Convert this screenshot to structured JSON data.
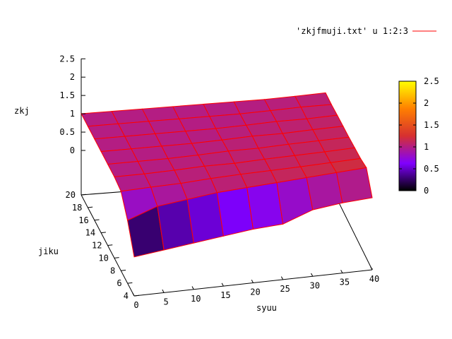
{
  "chart_data": {
    "type": "surface",
    "title": "",
    "legend": {
      "label": "'zkjfmuji.txt' u 1:2:3",
      "color": "#ff0000",
      "placement": "top-right"
    },
    "axes": {
      "x": {
        "label": "syuu",
        "range": [
          0,
          40
        ],
        "ticks": [
          "0",
          "5",
          "10",
          "15",
          "20",
          "25",
          "30",
          "35",
          "40"
        ]
      },
      "y": {
        "label": "jiku",
        "range": [
          4,
          20
        ],
        "ticks": [
          "4",
          "6",
          "8",
          "10",
          "12",
          "14",
          "16",
          "18",
          "20"
        ]
      },
      "z": {
        "label": "zkj",
        "range": [
          0,
          2.5
        ],
        "ticks": [
          "0",
          "0.5",
          "1",
          "1.5",
          "2",
          "2.5"
        ]
      }
    },
    "colorbox": {
      "range": [
        0,
        2.5
      ],
      "ticks": [
        "0",
        "0.5",
        "1",
        "1.5",
        "2",
        "2.5"
      ],
      "palette": [
        "#000000",
        "#8000ff",
        "#d63030",
        "#ff8000",
        "#ffff00"
      ]
    },
    "x": [
      0,
      5,
      10,
      15,
      20,
      25,
      30,
      35,
      40
    ],
    "y": [
      4,
      6,
      8,
      10,
      12,
      14,
      16,
      18,
      20
    ],
    "z": [
      [
        -0.15,
        -0.05,
        0.05,
        0.15,
        0.25,
        0.3,
        0.6,
        0.7,
        0.75
      ],
      [
        0.5,
        0.8,
        0.9,
        1.0,
        1.05,
        1.1,
        1.15,
        1.2,
        1.25
      ],
      [
        0.95,
        0.98,
        1.0,
        1.05,
        1.08,
        1.1,
        1.12,
        1.15,
        1.18
      ],
      [
        1.0,
        1.0,
        1.02,
        1.05,
        1.05,
        1.08,
        1.1,
        1.12,
        1.15
      ],
      [
        1.0,
        1.0,
        1.0,
        1.02,
        1.05,
        1.05,
        1.08,
        1.1,
        1.12
      ],
      [
        1.0,
        1.0,
        1.0,
        1.0,
        1.02,
        1.05,
        1.05,
        1.08,
        1.1
      ],
      [
        1.0,
        1.0,
        1.0,
        1.0,
        1.0,
        1.02,
        1.05,
        1.05,
        1.08
      ],
      [
        1.0,
        1.0,
        1.0,
        1.0,
        1.0,
        1.0,
        1.02,
        1.05,
        1.05
      ],
      [
        1.0,
        1.0,
        1.0,
        1.0,
        1.0,
        1.0,
        1.0,
        1.02,
        1.05
      ]
    ],
    "mesh_color": "#ff0000",
    "grid": false
  }
}
